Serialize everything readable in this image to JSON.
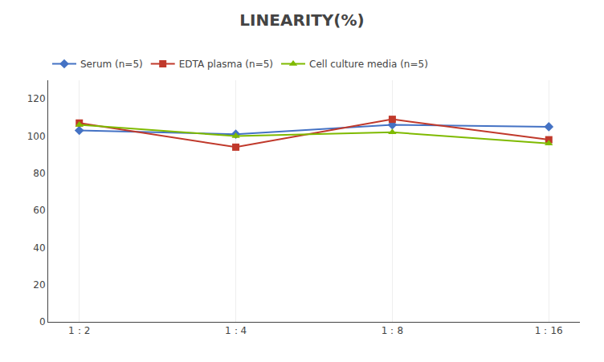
{
  "chart_data": {
    "type": "line",
    "title": "LINEARITY(%)",
    "categories": [
      "1：2",
      "1：4",
      "1：8",
      "1：16"
    ],
    "series": [
      {
        "name": "Serum (n=5)",
        "color": "#4472C4",
        "marker": "diamond",
        "values": [
          103,
          101,
          106,
          105
        ]
      },
      {
        "name": "EDTA plasma (n=5)",
        "color": "#C0392B",
        "marker": "square",
        "values": [
          107,
          94,
          109,
          98
        ]
      },
      {
        "name": "Cell culture media (n=5)",
        "color": "#7FBA00",
        "marker": "triangle-up",
        "values": [
          106,
          100,
          102,
          96
        ]
      }
    ],
    "ylim": [
      0,
      130
    ],
    "yticks": [
      0,
      20,
      40,
      60,
      80,
      100,
      120
    ],
    "grid": "x",
    "legend": "upper left"
  }
}
